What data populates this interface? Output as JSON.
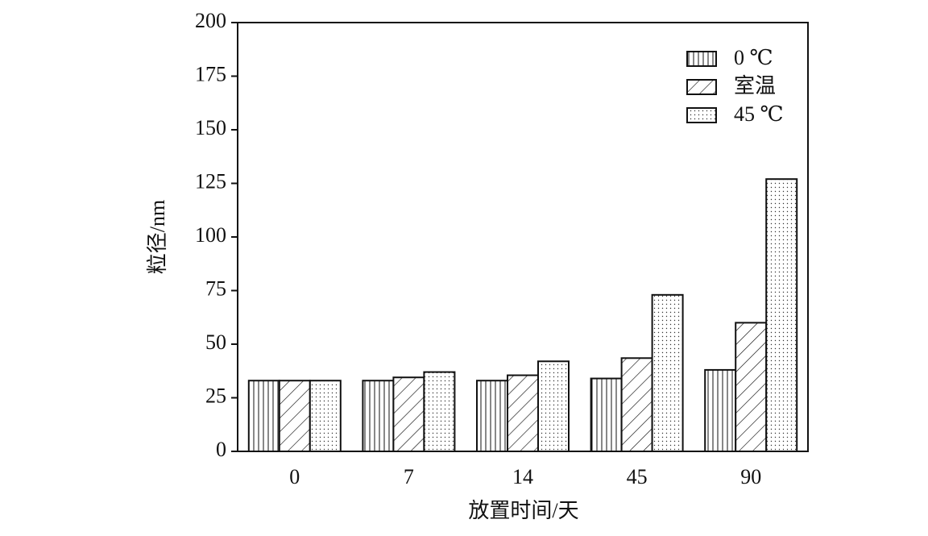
{
  "chart_data": {
    "type": "bar",
    "x_label": "放置时间/天",
    "y_label": "粒径/nm",
    "categories": [
      "0",
      "7",
      "14",
      "45",
      "90"
    ],
    "series": [
      {
        "name": "0 ℃",
        "color": "#111111",
        "pattern": "vertical",
        "values": [
          33,
          33,
          33,
          34,
          38
        ]
      },
      {
        "name": "室温",
        "color": "#111111",
        "pattern": "diagonal",
        "values": [
          33,
          34.5,
          35.5,
          43.5,
          60
        ]
      },
      {
        "name": "45 ℃",
        "color": "#111111",
        "pattern": "dots",
        "values": [
          33,
          37,
          42,
          73,
          127
        ]
      }
    ],
    "ylim": [
      0,
      200
    ],
    "yticks": [
      0,
      25,
      50,
      75,
      100,
      125,
      150,
      175,
      200
    ],
    "legend": "upper right",
    "grid": false
  }
}
